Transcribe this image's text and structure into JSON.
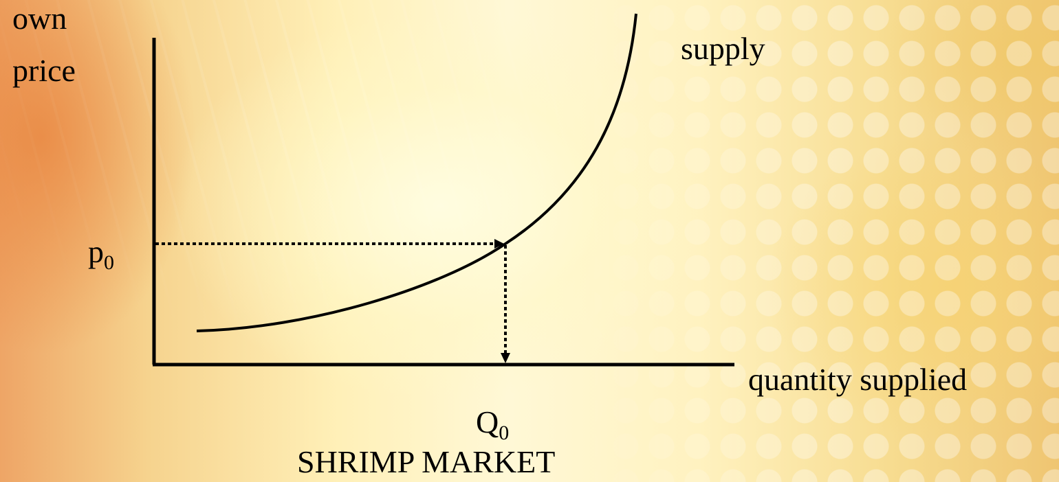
{
  "diagram": {
    "y_axis_label_line1": "own",
    "y_axis_label_line2": "price",
    "curve_label": "supply",
    "x_axis_label": "quantity supplied",
    "price_symbol": "p",
    "price_subscript": "0",
    "quantity_symbol": "Q",
    "quantity_subscript": "0",
    "caption": "SHRIMP MARKET"
  }
}
